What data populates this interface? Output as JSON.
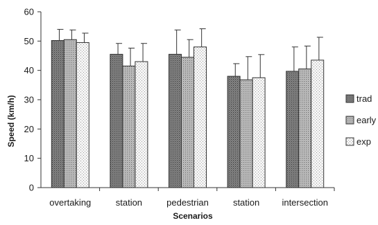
{
  "chart_data": {
    "type": "bar",
    "title": "",
    "xlabel": "Scenarios",
    "ylabel": "Speed (km/h)",
    "ylim": [
      0,
      60
    ],
    "yticks": [
      0,
      10,
      20,
      30,
      40,
      50,
      60
    ],
    "categories": [
      "overtaking",
      "station",
      "pedestrian",
      "station",
      "intersection"
    ],
    "series": [
      {
        "name": "trad",
        "values": [
          50.2,
          45.5,
          45.5,
          38.0,
          39.7
        ],
        "error": [
          3.8,
          3.7,
          8.3,
          4.3,
          8.3
        ],
        "pattern": "dark-dots"
      },
      {
        "name": "early",
        "values": [
          50.5,
          41.5,
          44.5,
          36.8,
          40.5
        ],
        "error": [
          3.3,
          6.1,
          6.0,
          7.9,
          7.8
        ],
        "pattern": "medium-dots"
      },
      {
        "name": "exp",
        "values": [
          49.5,
          43.0,
          48.0,
          37.5,
          43.5
        ],
        "error": [
          3.2,
          6.2,
          6.2,
          7.9,
          7.8
        ],
        "pattern": "light-dots"
      }
    ],
    "legend_position": "right",
    "grid": false,
    "error_bars": true
  }
}
